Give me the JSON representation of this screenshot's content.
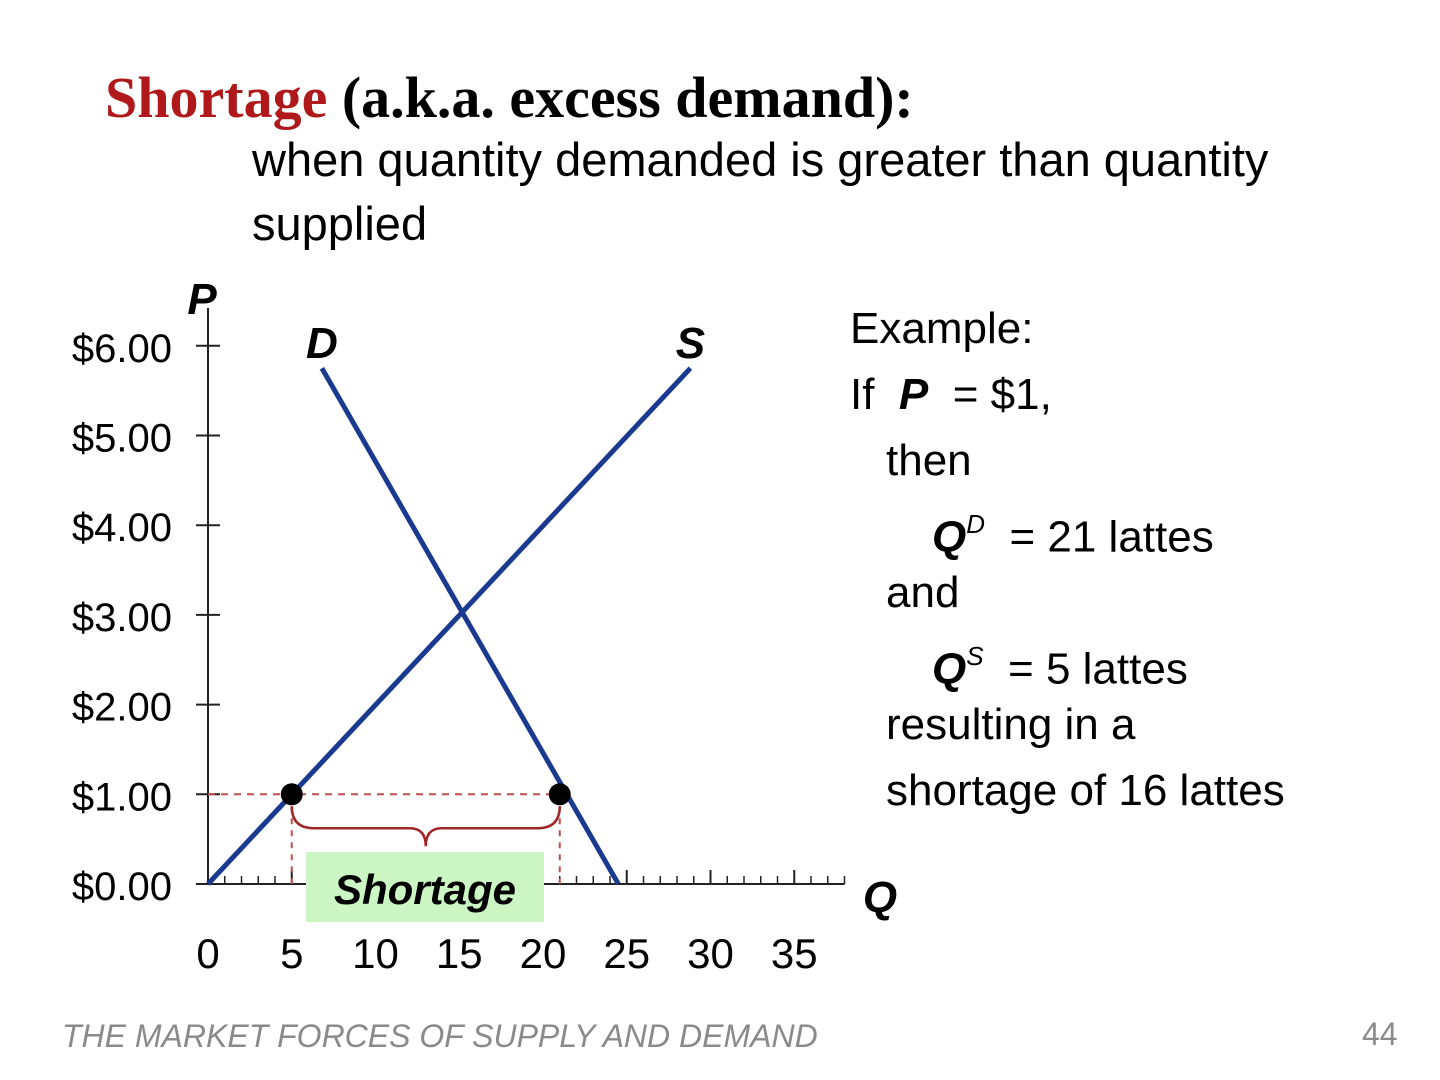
{
  "title": {
    "highlight": "Shortage",
    "rest": "(a.k.a. excess demand):"
  },
  "subtitle": "when quantity demanded is greater than quantity supplied",
  "colors": {
    "title_accent": "#b0191b",
    "curve": "#1a3a8f",
    "guide": "#c0504d",
    "brace": "#a02828",
    "shortage_box": "#ccf5c4",
    "footer": "#8a8a8a"
  },
  "chart_data": {
    "type": "line",
    "xlabel": "Q",
    "ylabel": "P",
    "xlim": [
      0,
      38
    ],
    "ylim": [
      0,
      6
    ],
    "x_ticks": [
      "0",
      "5",
      "10",
      "15",
      "20",
      "25",
      "30",
      "35"
    ],
    "y_ticks": [
      "$0.00",
      "$1.00",
      "$2.00",
      "$3.00",
      "$4.00",
      "$5.00",
      "$6.00"
    ],
    "series": [
      {
        "name": "D",
        "points": [
          [
            6.8,
            5.75
          ],
          [
            24.5,
            0
          ]
        ]
      },
      {
        "name": "S",
        "points": [
          [
            0,
            0
          ],
          [
            28.8,
            5.75
          ]
        ]
      }
    ],
    "highlight_points": [
      [
        5,
        1
      ],
      [
        21,
        1
      ]
    ],
    "price_line": 1,
    "annotation": "Shortage"
  },
  "example": {
    "heading": "Example:",
    "if_word": "If",
    "p_label": "P",
    "price_eq": "=  $1,",
    "then": "then",
    "qd_label": "Q",
    "qd_sup": "D",
    "qd_eq": "=  21 lattes",
    "and": "and",
    "qs_label": "Q",
    "qs_sup": "S",
    "qs_eq": "=  5 lattes",
    "result_1": "resulting in a",
    "result_2": "shortage of 16 lattes"
  },
  "footer": "THE MARKET FORCES OF SUPPLY AND DEMAND",
  "page_number": "44"
}
